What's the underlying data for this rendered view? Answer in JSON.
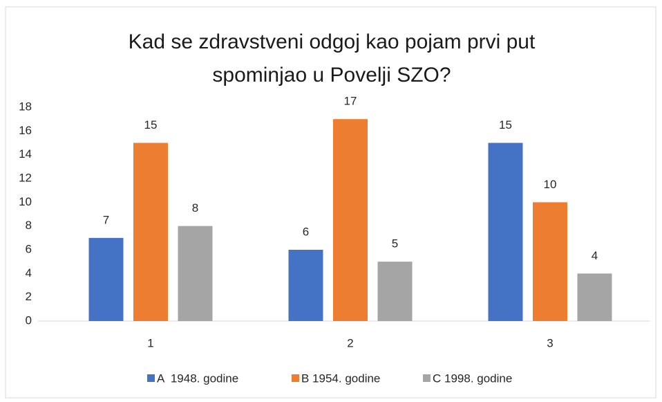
{
  "chart_data": {
    "type": "bar",
    "title": [
      "Kad se zdravstveni odgoj kao pojam prvi put",
      "spominjao u Povelji SZO?"
    ],
    "categories": [
      "1",
      "2",
      "3"
    ],
    "series": [
      {
        "name": "A  1948. godine",
        "color": "#4472c4",
        "values": [
          7,
          6,
          15
        ]
      },
      {
        "name": "B 1954. godine",
        "color": "#ed7d31",
        "values": [
          15,
          17,
          10
        ]
      },
      {
        "name": "C 1998. godine",
        "color": "#a5a5a5",
        "values": [
          8,
          5,
          4
        ]
      }
    ],
    "ylim": [
      0,
      18
    ],
    "yticks": [
      0,
      2,
      4,
      6,
      8,
      10,
      12,
      14,
      16,
      18
    ],
    "grid": false,
    "legend": "bottom"
  }
}
